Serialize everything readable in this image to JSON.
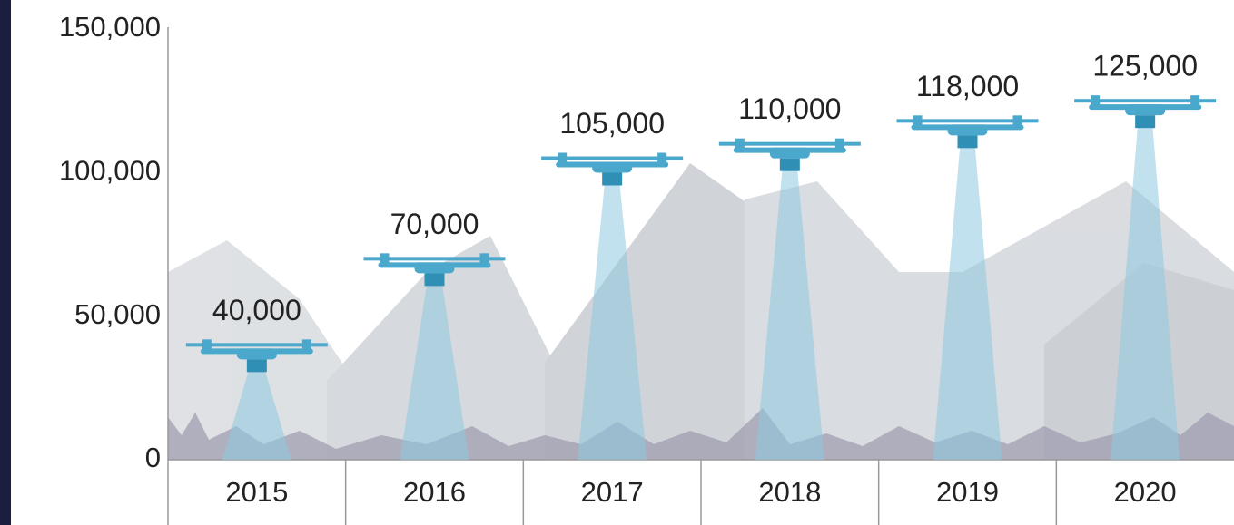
{
  "chart_data": {
    "type": "drone-bar",
    "categories": [
      "2015",
      "2016",
      "2017",
      "2018",
      "2019",
      "2020"
    ],
    "values": [
      40000,
      70000,
      105000,
      110000,
      118000,
      125000
    ],
    "value_labels": [
      "40,000",
      "70,000",
      "105,000",
      "110,000",
      "118,000",
      "125,000"
    ],
    "color": "#4aa8cc",
    "ylim": [
      0,
      150000
    ],
    "yticks": [
      0,
      {
        "value": 50000,
        "label": "50,000"
      },
      {
        "value": 100000,
        "label": "100,000"
      },
      {
        "value": 150000,
        "label": "150,000"
      }
    ],
    "grid": false
  }
}
